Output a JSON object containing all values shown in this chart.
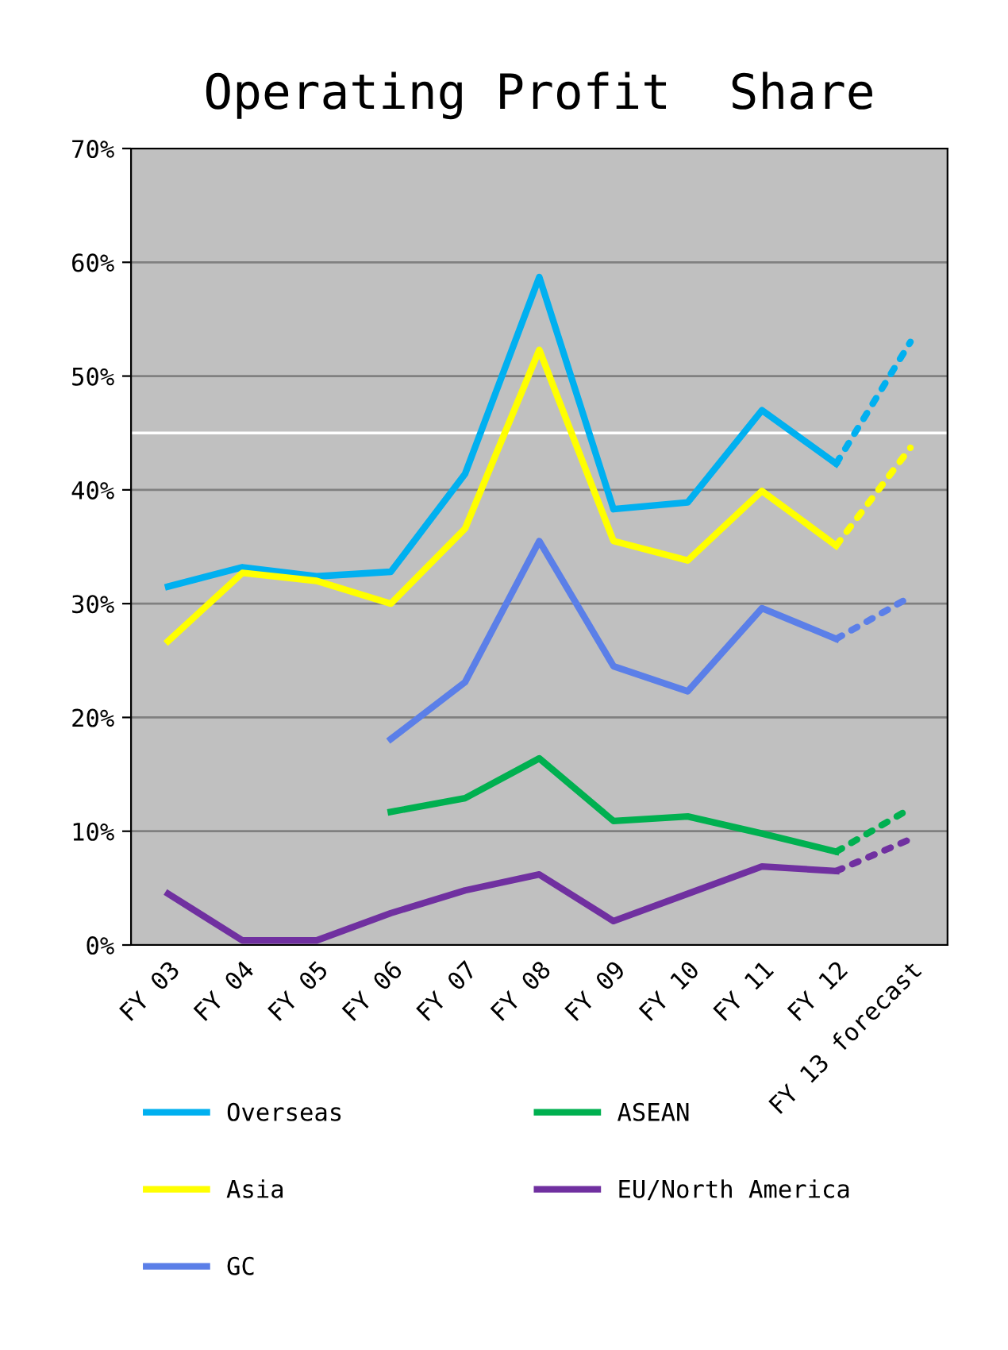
{
  "chart_data": {
    "type": "line",
    "title": "Operating Profit  Share",
    "categories": [
      "FY 03",
      "FY 04",
      "FY 05",
      "FY 06",
      "FY 07",
      "FY 08",
      "FY 09",
      "FY 10",
      "FY 11",
      "FY 12",
      "FY 13 forecast"
    ],
    "series": [
      {
        "name": "Overseas",
        "color": "#00b0f0",
        "values": [
          31.5,
          33.2,
          32.4,
          32.8,
          41.4,
          58.7,
          38.3,
          38.9,
          47.0,
          42.3,
          null
        ]
      },
      {
        "name": "Asia",
        "color": "#ffff00",
        "values": [
          26.7,
          32.7,
          32.0,
          30.0,
          36.6,
          52.3,
          35.5,
          33.8,
          39.9,
          35.1,
          null
        ]
      },
      {
        "name": "GC",
        "color": "#5b7fe8",
        "values": [
          null,
          null,
          null,
          18.1,
          23.1,
          35.5,
          24.5,
          22.3,
          29.6,
          26.9,
          null
        ]
      },
      {
        "name": "ASEAN",
        "color": "#00b050",
        "values": [
          null,
          null,
          null,
          11.7,
          12.9,
          16.4,
          10.9,
          11.3,
          9.8,
          8.2,
          null
        ]
      },
      {
        "name": "EU/North America",
        "color": "#7030a0",
        "values": [
          4.5,
          0.4,
          0.4,
          2.8,
          4.8,
          6.2,
          2.1,
          4.5,
          6.9,
          6.5,
          null
        ]
      },
      {
        "color": "#00b0f0",
        "line_style": "dotted",
        "values": [
          null,
          null,
          null,
          null,
          null,
          null,
          null,
          null,
          null,
          42.3,
          53.0
        ]
      },
      {
        "color": "#ffff00",
        "line_style": "dotted",
        "values": [
          null,
          null,
          null,
          null,
          null,
          null,
          null,
          null,
          null,
          35.1,
          43.7
        ]
      },
      {
        "color": "#5b7fe8",
        "line_style": "dotted",
        "values": [
          null,
          null,
          null,
          null,
          null,
          null,
          null,
          null,
          null,
          26.9,
          30.6
        ]
      },
      {
        "color": "#00b050",
        "line_style": "dotted",
        "values": [
          null,
          null,
          null,
          null,
          null,
          null,
          null,
          null,
          null,
          8.2,
          12.0
        ]
      },
      {
        "color": "#7030a0",
        "line_style": "dotted",
        "values": [
          null,
          null,
          null,
          null,
          null,
          null,
          null,
          null,
          null,
          6.5,
          9.3
        ]
      }
    ],
    "ylim": [
      0,
      70
    ],
    "yticks": [
      {
        "value": 0,
        "label": "0%"
      },
      {
        "value": 10,
        "label": "10%"
      },
      {
        "value": 20,
        "label": "20%"
      },
      {
        "value": 30,
        "label": "30%"
      },
      {
        "value": 40,
        "label": "40%"
      },
      {
        "value": 50,
        "label": "50%"
      },
      {
        "value": 60,
        "label": "60%"
      },
      {
        "value": 70,
        "label": "70%"
      }
    ],
    "ref_lines": [
      {
        "axis": "y",
        "value": 45,
        "color": "#ffffff"
      }
    ],
    "grid": "y",
    "legend": "bottom",
    "line_style": "solid",
    "marker": "none"
  }
}
